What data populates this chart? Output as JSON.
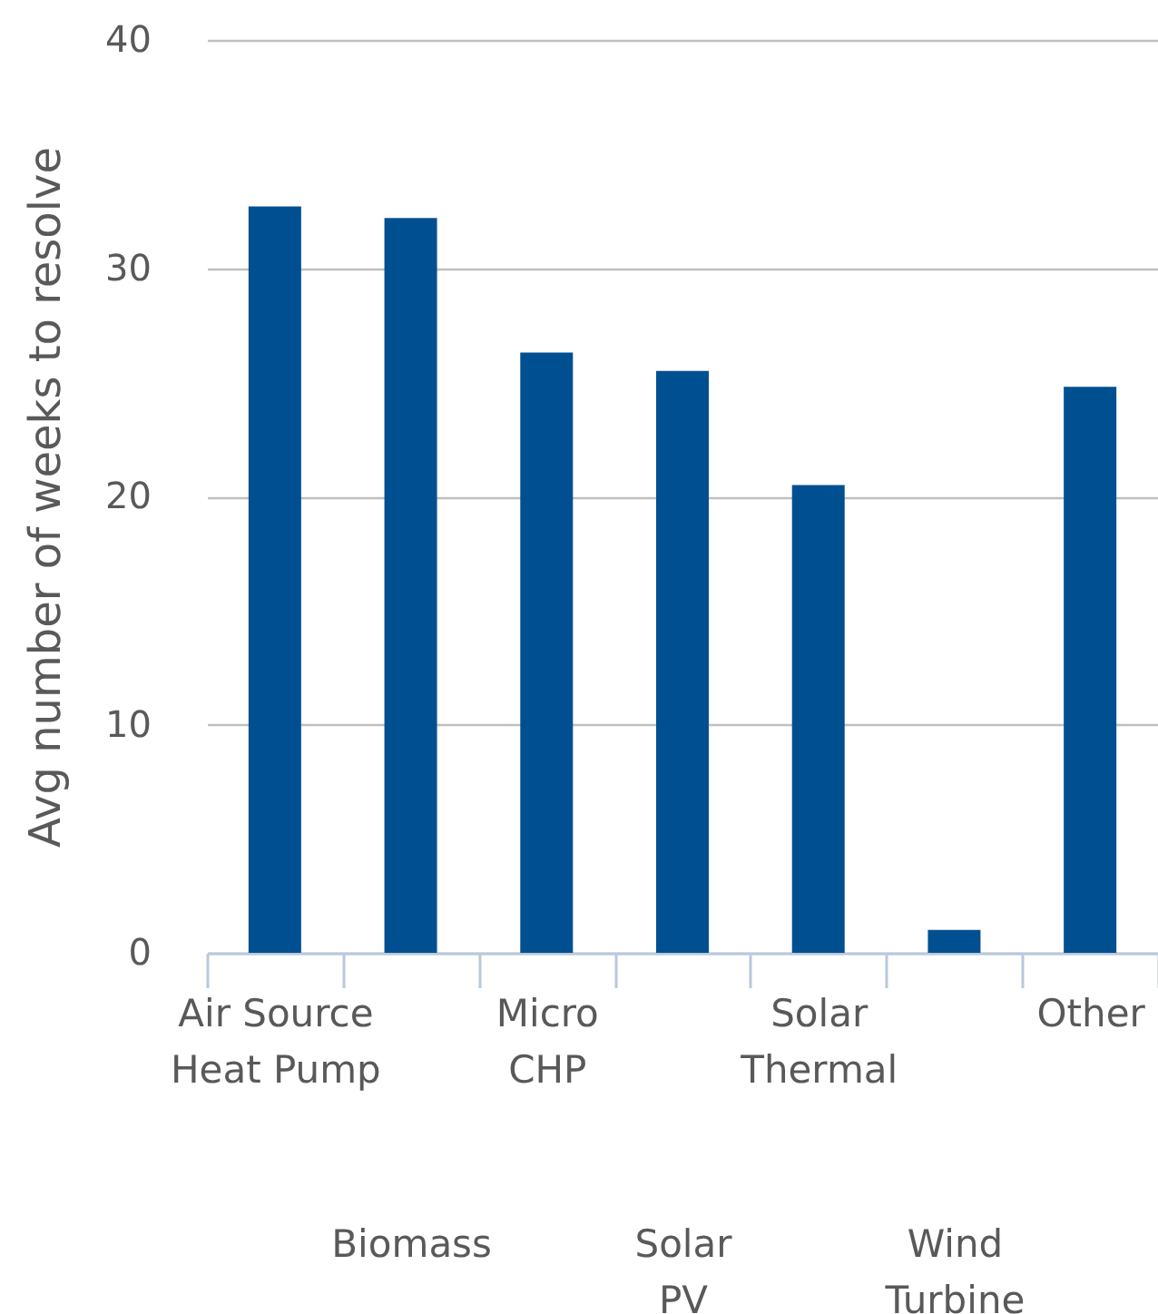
{
  "chart_data": {
    "type": "bar",
    "ylabel": "Avg number of weeks to resolve",
    "categories": [
      "Air Source Heat Pump",
      "Biomass",
      "Micro CHP",
      "Solar PV",
      "Solar Thermal",
      "Wind Turbine",
      "Other"
    ],
    "values": [
      32.7,
      32.2,
      26.3,
      25.5,
      20.5,
      1.0,
      24.8
    ],
    "color": "#005091",
    "ylim": [
      0,
      40
    ],
    "yticks": [
      0,
      10,
      20,
      30,
      40
    ],
    "grid": "y"
  }
}
